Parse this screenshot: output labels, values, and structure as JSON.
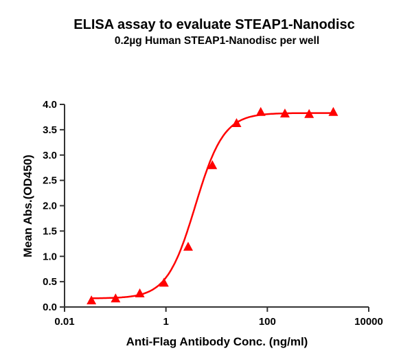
{
  "chart_data": {
    "type": "scatter",
    "title": "ELISA assay to evaluate STEAP1-Nanodisc",
    "subtitle": "0.2µg Human STEAP1-Nanodisc per well",
    "xlabel": "Anti-Flag Antibody Conc. (ng/ml)",
    "ylabel": "Mean Abs.(OD450)",
    "x_scale": "log",
    "xlim": [
      0.01,
      10000
    ],
    "ylim": [
      0,
      4.0
    ],
    "x_ticks": [
      "0.01",
      "1",
      "100",
      "10000"
    ],
    "x_tick_values": [
      0.01,
      1,
      100,
      10000
    ],
    "y_ticks": [
      "0.0",
      "0.5",
      "1.0",
      "1.5",
      "2.0",
      "2.5",
      "3.0",
      "3.5",
      "4.0"
    ],
    "y_tick_values": [
      0,
      0.5,
      1.0,
      1.5,
      2.0,
      2.5,
      3.0,
      3.5,
      4.0
    ],
    "grid": false,
    "legend": "none",
    "marker": "triangle",
    "fit": "sigmoidal curve",
    "color": "#ff0000",
    "series": [
      {
        "x": [
          0.0339,
          0.1016,
          0.305,
          0.914,
          2.74,
          8.23,
          24.7,
          74.1,
          222.2,
          666.7,
          2000
        ],
        "y": [
          0.12,
          0.16,
          0.26,
          0.47,
          1.18,
          2.79,
          3.62,
          3.84,
          3.81,
          3.8,
          3.84
        ]
      }
    ]
  }
}
